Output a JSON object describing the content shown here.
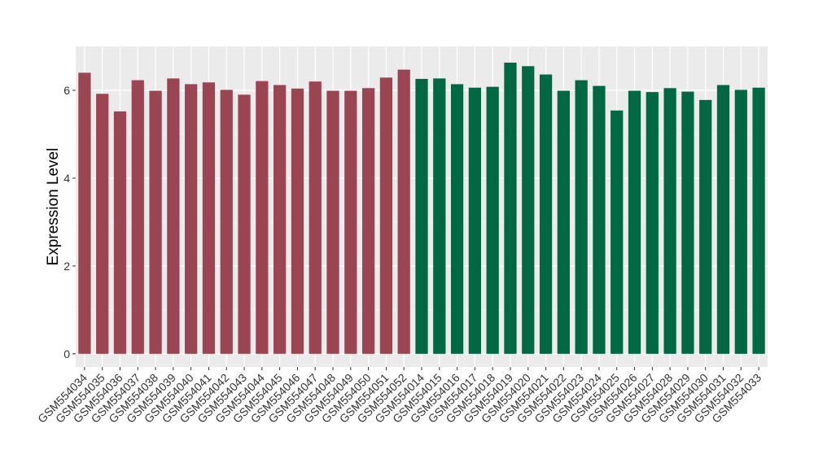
{
  "chart_data": {
    "type": "bar",
    "title": "",
    "xlabel": "",
    "ylabel": "Expression Level",
    "ylim": [
      -0.3,
      7.0
    ],
    "yticks": [
      0,
      2,
      4,
      6
    ],
    "grid": true,
    "legend": "none",
    "categories": [
      "GSM554034",
      "GSM554035",
      "GSM554036",
      "GSM554037",
      "GSM554038",
      "GSM554039",
      "GSM554040",
      "GSM554041",
      "GSM554042",
      "GSM554043",
      "GSM554044",
      "GSM554045",
      "GSM554046",
      "GSM554047",
      "GSM554048",
      "GSM554049",
      "GSM554050",
      "GSM554051",
      "GSM554052",
      "GSM554014",
      "GSM554015",
      "GSM554016",
      "GSM554017",
      "GSM554018",
      "GSM554019",
      "GSM554020",
      "GSM554021",
      "GSM554022",
      "GSM554023",
      "GSM554024",
      "GSM554025",
      "GSM554026",
      "GSM554027",
      "GSM554028",
      "GSM554029",
      "GSM554030",
      "GSM554031",
      "GSM554032",
      "GSM554033"
    ],
    "values": [
      6.4,
      5.92,
      5.52,
      6.23,
      5.99,
      6.27,
      6.14,
      6.18,
      6.01,
      5.9,
      6.21,
      6.12,
      6.04,
      6.2,
      5.99,
      5.99,
      6.05,
      6.29,
      6.47,
      6.26,
      6.27,
      6.14,
      6.06,
      6.08,
      6.63,
      6.55,
      6.36,
      5.99,
      6.23,
      6.1,
      5.54,
      5.99,
      5.96,
      6.05,
      5.97,
      5.78,
      6.12,
      6.01,
      6.06
    ],
    "group_sizes": [
      19,
      20
    ],
    "group_colors": [
      "#9B4452",
      "#006843"
    ]
  },
  "colors": {
    "panel": "#EBEBEB",
    "grid_major": "#FFFFFF",
    "grid_minor": "#F5F5F5",
    "tick": "#333333"
  }
}
